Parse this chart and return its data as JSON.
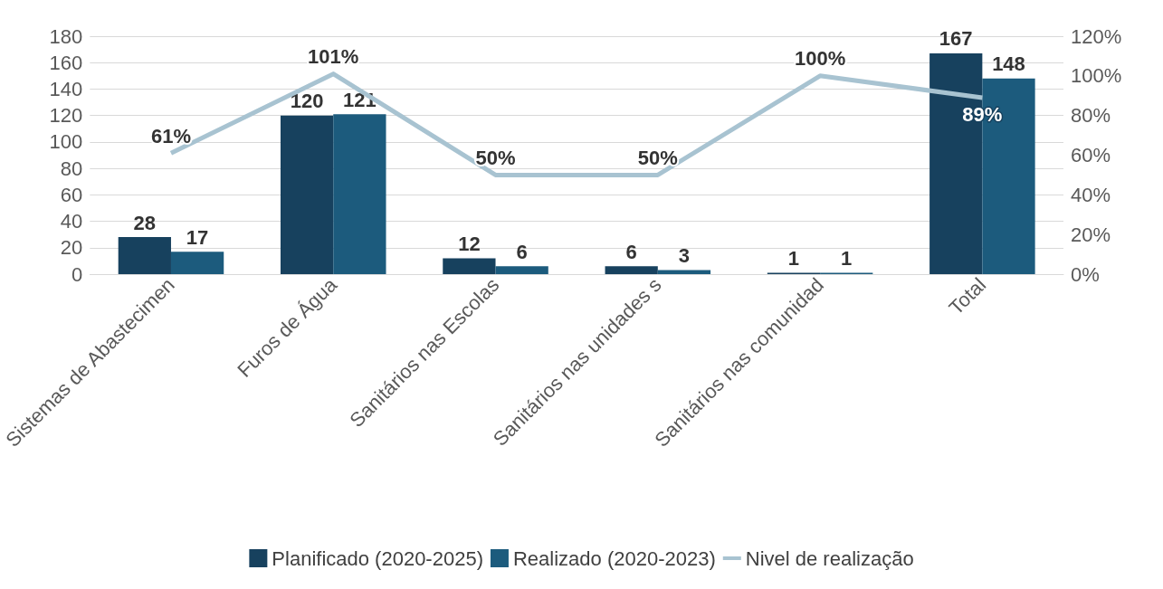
{
  "chart_data": {
    "type": "bar",
    "categories": [
      "Sistemas de Abastecimen",
      "Furos de Água",
      "Sanitários nas Escolas",
      "Sanitários nas unidades s",
      "Sanitários nas comunidad",
      "Total"
    ],
    "series": [
      {
        "name": "Planificado (2020-2025)",
        "color": "#17415e",
        "values": [
          28,
          120,
          12,
          6,
          1,
          167
        ]
      },
      {
        "name": "Realizado (2020-2023)",
        "color": "#1c5b7d",
        "values": [
          17,
          121,
          6,
          3,
          1,
          148
        ]
      },
      {
        "name": "Nivel de realização",
        "type": "line",
        "axis": "y2",
        "color": "#a8c3d1",
        "values": [
          61,
          101,
          50,
          50,
          100,
          89
        ],
        "value_labels": [
          "61%",
          "101%",
          "50%",
          "50%",
          "100%",
          "89%"
        ]
      }
    ],
    "ylim": [
      0,
      180
    ],
    "yticks": [
      0,
      20,
      40,
      60,
      80,
      100,
      120,
      140,
      160,
      180
    ],
    "y2lim": [
      0,
      120
    ],
    "y2ticks": [
      {
        "value": 0,
        "label": "0%"
      },
      {
        "value": 20,
        "label": "20%"
      },
      {
        "value": 40,
        "label": "40%"
      },
      {
        "value": 60,
        "label": "60%"
      },
      {
        "value": 80,
        "label": "80%"
      },
      {
        "value": 100,
        "label": "100%"
      },
      {
        "value": 120,
        "label": "120%"
      }
    ],
    "data_labels": true,
    "grid": "y",
    "legend": "bottom",
    "marker": "none"
  }
}
